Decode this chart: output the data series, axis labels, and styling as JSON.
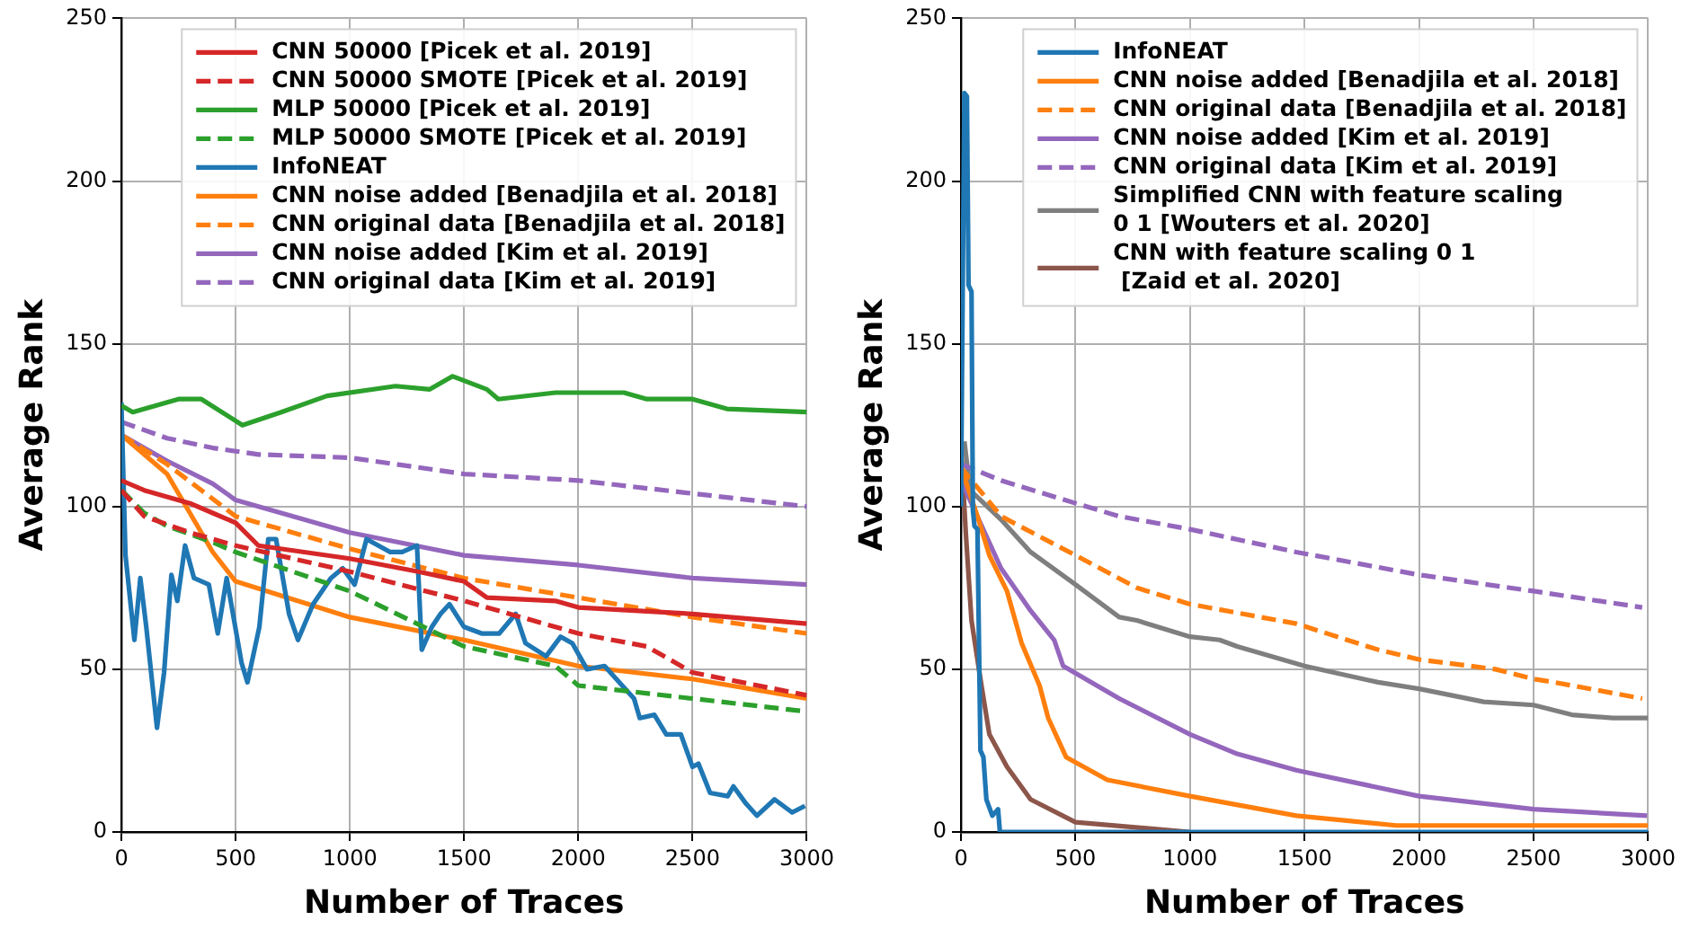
{
  "chart_data": [
    {
      "type": "line",
      "xlabel": "Number of Traces",
      "ylabel": "Average Rank",
      "xlim": [
        0,
        3000
      ],
      "ylim": [
        0,
        250
      ],
      "xticks": [
        0,
        500,
        1000,
        1500,
        2000,
        2500,
        3000
      ],
      "yticks": [
        0,
        50,
        100,
        150,
        200,
        250
      ],
      "grid": true,
      "legend": "top right",
      "marker": "none",
      "series": [
        {
          "name": "CNN 50000 [Picek et al. 2019]",
          "color": "#d62728",
          "x": [
            0,
            100,
            300,
            400,
            500,
            600,
            800,
            1000,
            1300,
            1500,
            1600,
            1900,
            2000,
            2500,
            3000
          ],
          "values": [
            108,
            105,
            101,
            98,
            95,
            88,
            86,
            84,
            80,
            77,
            72,
            71,
            69,
            67,
            64
          ]
        },
        {
          "name": "CNN 50000 SMOTE [Picek et al. 2019]",
          "color": "#d62728",
          "line_style": "dashed",
          "x": [
            0,
            100,
            300,
            500,
            1000,
            1500,
            2000,
            2300,
            2500,
            3000
          ],
          "values": [
            105,
            97,
            92,
            88,
            80,
            71,
            61,
            57,
            49,
            42
          ]
        },
        {
          "name": "MLP 50000 [Picek et al. 2019]",
          "color": "#2ca02c",
          "x": [
            0,
            50,
            250,
            350,
            530,
            700,
            900,
            1200,
            1350,
            1450,
            1600,
            1650,
            1900,
            2200,
            2300,
            2500,
            2650,
            3000
          ],
          "values": [
            131,
            129,
            133,
            133,
            125,
            129,
            134,
            137,
            136,
            140,
            136,
            133,
            135,
            135,
            133,
            133,
            130,
            129
          ]
        },
        {
          "name": "MLP 50000 SMOTE [Picek et al. 2019]",
          "color": "#2ca02c",
          "line_style": "dashed",
          "x": [
            0,
            100,
            200,
            400,
            500,
            1000,
            1500,
            1900,
            2000,
            2500,
            3000
          ],
          "values": [
            105,
            98,
            94,
            89,
            86,
            74,
            57,
            51,
            45,
            41,
            37
          ]
        },
        {
          "name": "InfoNEAT",
          "color": "#1f77b4",
          "x": [
            0,
            18,
            57,
            83,
            109,
            156,
            187,
            219,
            245,
            279,
            318,
            383,
            422,
            461,
            526,
            552,
            604,
            643,
            677,
            734,
            773,
            839,
            917,
            969,
            1021,
            1073,
            1125,
            1177,
            1229,
            1294,
            1315,
            1359,
            1397,
            1436,
            1500,
            1577,
            1654,
            1726,
            1769,
            1859,
            1923,
            1974,
            2038,
            2115,
            2192,
            2244,
            2269,
            2333,
            2385,
            2449,
            2500,
            2526,
            2577,
            2654,
            2679,
            2731,
            2782,
            2859,
            2936,
            2992
          ],
          "values": [
            132,
            85,
            59,
            78,
            63,
            32,
            49,
            79,
            71,
            88,
            78,
            76,
            61,
            78,
            52,
            46,
            63,
            90,
            90,
            67,
            59,
            70,
            78,
            81,
            76,
            90,
            88,
            86,
            86,
            88,
            56,
            63,
            67,
            70,
            63,
            61,
            61,
            67,
            58,
            54,
            60,
            58,
            50,
            51,
            45,
            41,
            35,
            36,
            30,
            30,
            20,
            21,
            12,
            11,
            14,
            9,
            5,
            10,
            6,
            8
          ]
        },
        {
          "name": "CNN noise added [Benadjila et al. 2018]",
          "color": "#ff7f0e",
          "x": [
            0,
            200,
            400,
            500,
            1000,
            1500,
            2000,
            2500,
            3000
          ],
          "values": [
            122,
            110,
            86,
            77,
            66,
            59,
            51,
            47,
            41
          ]
        },
        {
          "name": "CNN original data [Benadjila et al. 2018]",
          "color": "#ff7f0e",
          "line_style": "dashed",
          "x": [
            0,
            200,
            500,
            1000,
            1500,
            2000,
            2500,
            3000
          ],
          "values": [
            122,
            113,
            97,
            87,
            78,
            72,
            66,
            61
          ]
        },
        {
          "name": "CNN noise added [Kim et al. 2019]",
          "color": "#9467bd",
          "x": [
            0,
            200,
            400,
            500,
            1000,
            1500,
            2000,
            2500,
            3000
          ],
          "values": [
            122,
            114,
            107,
            102,
            92,
            85,
            82,
            78,
            76
          ]
        },
        {
          "name": "CNN original data [Kim et al. 2019]",
          "color": "#9467bd",
          "line_style": "dashed",
          "x": [
            0,
            200,
            400,
            600,
            1000,
            1500,
            2000,
            2500,
            3000
          ],
          "values": [
            126,
            121,
            118,
            116,
            115,
            110,
            108,
            104,
            100
          ]
        }
      ]
    },
    {
      "type": "line",
      "xlabel": "Number of Traces",
      "ylabel": "Average Rank",
      "xlim": [
        0,
        3000
      ],
      "ylim": [
        0,
        250
      ],
      "xticks": [
        0,
        500,
        1000,
        1500,
        2000,
        2500,
        3000
      ],
      "yticks": [
        0,
        50,
        100,
        150,
        200,
        250
      ],
      "grid": true,
      "legend": "top right",
      "marker": "none",
      "series": [
        {
          "name": "InfoNEAT",
          "color": "#1f77b4",
          "x": [
            0,
            8,
            15,
            26,
            33,
            46,
            52,
            59,
            72,
            85,
            98,
            111,
            137,
            162,
            170,
            3000
          ],
          "values": [
            100,
            170,
            227,
            226,
            168,
            166,
            99,
            94,
            93,
            25,
            23,
            10,
            5,
            7,
            0,
            0
          ]
        },
        {
          "name": "CNN noise added [Benadjila et al. 2018]",
          "color": "#ff7f0e",
          "x": [
            0,
            72,
            124,
            201,
            265,
            343,
            381,
            459,
            639,
            1000,
            1464,
            1900,
            3000
          ],
          "values": [
            112,
            97,
            85,
            74,
            58,
            45,
            35,
            23,
            16,
            11,
            5,
            2,
            2
          ]
        },
        {
          "name": "CNN original data [Benadjila et al. 2018]",
          "color": "#ff7f0e",
          "line_style": "dashed",
          "x": [
            0,
            175,
            500,
            768,
            1000,
            1464,
            1821,
            2000,
            2333,
            2500,
            2590,
            2974
          ],
          "values": [
            112,
            97,
            85,
            75,
            70,
            64,
            56,
            53,
            50,
            47,
            46,
            41
          ]
        },
        {
          "name": "CNN noise added [Kim et al. 2019]",
          "color": "#9467bd",
          "x": [
            0,
            175,
            304,
            407,
            446,
            691,
            1000,
            1206,
            1464,
            2000,
            2500,
            2995
          ],
          "values": [
            108,
            81,
            68,
            59,
            51,
            41,
            30,
            24,
            19,
            11,
            7,
            5
          ]
        },
        {
          "name": "CNN original data [Kim et al. 2019]",
          "color": "#9467bd",
          "line_style": "dashed",
          "x": [
            0,
            175,
            500,
            691,
            1000,
            1464,
            2000,
            2500,
            2974
          ],
          "values": [
            113,
            108,
            101,
            97,
            93,
            86,
            79,
            74,
            69
          ]
        },
        {
          "name": "Simplified CNN with feature scaling\n0 1 [Wouters et al. 2020]",
          "color": "#7f7f7f",
          "x": [
            15,
            40,
            175,
            304,
            500,
            691,
            768,
            1000,
            1129,
            1206,
            1500,
            1821,
            2000,
            2282,
            2500,
            2667,
            2846,
            3000
          ],
          "values": [
            120,
            105,
            96,
            86,
            76,
            66,
            65,
            60,
            59,
            57,
            51,
            46,
            44,
            40,
            39,
            36,
            35,
            35
          ]
        },
        {
          "name": "CNN with feature scaling 0 1\n [Zaid et al. 2020]",
          "color": "#8c564b",
          "x": [
            0,
            21,
            46,
            85,
            124,
            201,
            304,
            500,
            1000
          ],
          "values": [
            119,
            92,
            65,
            47,
            30,
            20,
            10,
            3,
            0
          ]
        }
      ]
    }
  ]
}
